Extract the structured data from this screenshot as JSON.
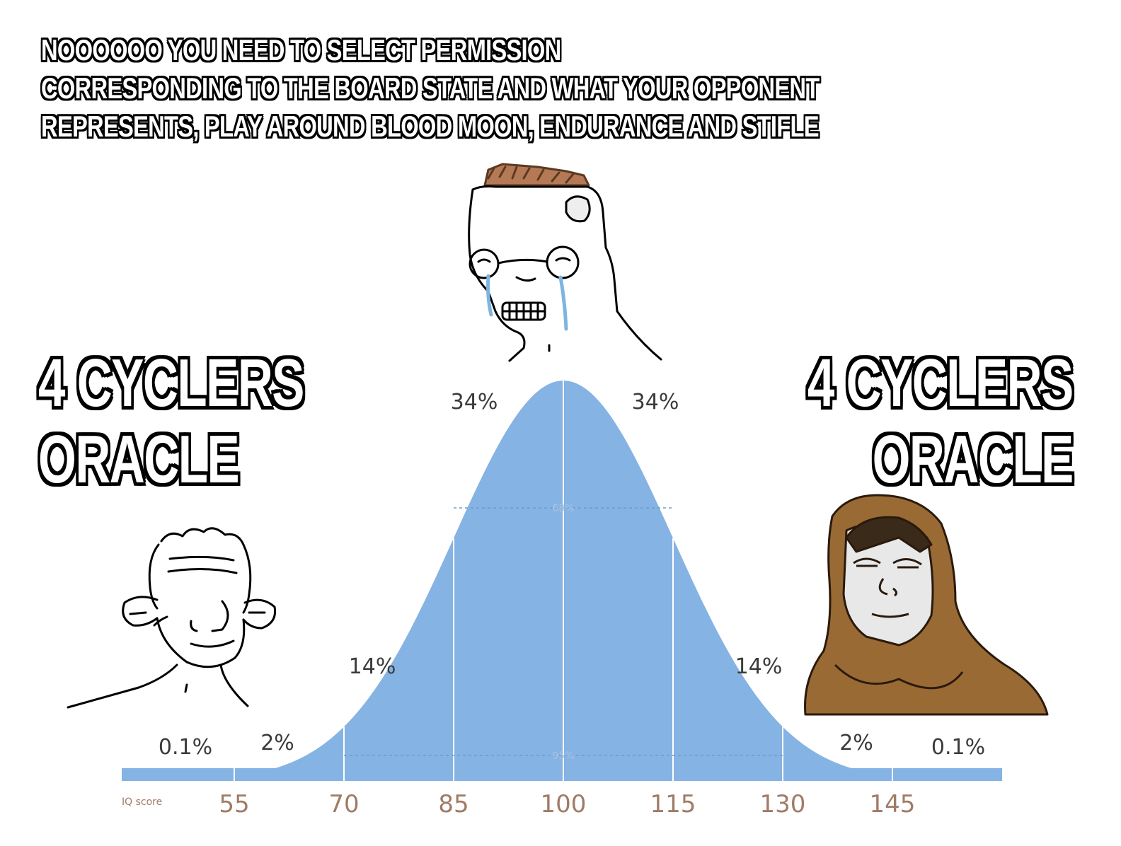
{
  "top_caption": {
    "lines": [
      "NOOOOOO YOU NEED TO SELECT PERMISSION",
      "CORRESPONDING TO THE BOARD STATE AND WHAT YOUR OPPONENT",
      "REPRESENTS, PLAY AROUND BLOOD MOON, ENDURANCE AND STIFLE"
    ]
  },
  "left_label": {
    "line1": "4 CYCLERS",
    "line2": "ORACLE"
  },
  "right_label": {
    "line1": "4 CYCLERS",
    "line2": "ORACLE"
  },
  "characters": {
    "left": "simple-wojak-icon",
    "center": "crying-glasses-wojak-icon",
    "right": "hooded-monk-icon"
  },
  "chart_data": {
    "type": "area",
    "distribution": "normal",
    "mean": 100,
    "sd": 15,
    "xlabel": "IQ score",
    "x_ticks": [
      55,
      70,
      85,
      100,
      115,
      130,
      145
    ],
    "band_labels": [
      "0.1%",
      "2%",
      "14%",
      "34%",
      "34%",
      "14%",
      "2%",
      "0.1%"
    ],
    "inner_labels": [
      "68%",
      "95%"
    ],
    "colors": {
      "fill": "#85b3e3",
      "tick_text": "#a07b66",
      "band_text": "#3b3b3b"
    }
  }
}
